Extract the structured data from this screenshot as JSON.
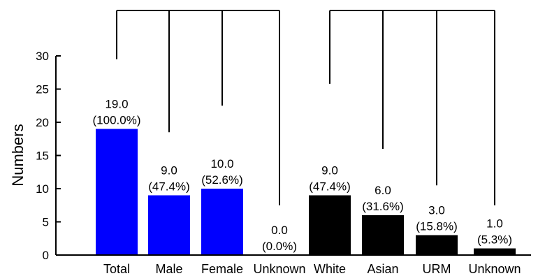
{
  "chart_data": {
    "type": "bar",
    "ylabel": "Numbers",
    "xlabel": "",
    "ylim": [
      0,
      30
    ],
    "yticks": [
      0,
      5,
      10,
      15,
      20,
      25,
      30
    ],
    "grid": false,
    "categories": [
      "Total",
      "Male",
      "Female",
      "Unknown",
      "White",
      "Asian",
      "URM",
      "Unknown"
    ],
    "values": [
      19.0,
      9.0,
      10.0,
      0.0,
      9.0,
      6.0,
      3.0,
      1.0
    ],
    "value_labels": [
      "19.0",
      "9.0",
      "10.0",
      "0.0",
      "9.0",
      "6.0",
      "3.0",
      "1.0"
    ],
    "percent_labels": [
      "(100.0%)",
      "(47.4%)",
      "(52.6%)",
      "(0.0%)",
      "(47.4%)",
      "(31.6%)",
      "(15.8%)",
      "(5.3%)"
    ],
    "bar_colors": [
      "#0000ff",
      "#0000ff",
      "#0000ff",
      "#0000ff",
      "#000000",
      "#000000",
      "#000000",
      "#000000"
    ],
    "dendrogram_groups": [
      {
        "members": [
          0,
          1,
          2,
          3
        ],
        "leaf_values": [
          29.5,
          18.5,
          22.5,
          7.5
        ]
      },
      {
        "members": [
          4,
          5,
          6,
          7
        ],
        "leaf_values": [
          25.8,
          16.0,
          10.5,
          7.5
        ]
      }
    ]
  }
}
